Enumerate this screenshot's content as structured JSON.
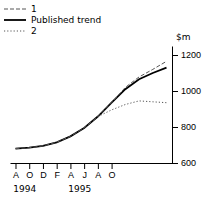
{
  "chart_data": {
    "type": "line",
    "categories": [
      "A",
      "O",
      "D",
      "F",
      "A",
      "J",
      "A",
      "O",
      null,
      null,
      null,
      null
    ],
    "series": [
      {
        "name": "1",
        "color": "#555555",
        "line_style": "dashed",
        "values": [
          680,
          685,
          695,
          715,
          748,
          795,
          858,
          935,
          1020,
          1078,
          1120,
          1165
        ]
      },
      {
        "name": "Published trend",
        "color": "#000000",
        "line_style": "solid",
        "values": [
          680,
          685,
          695,
          715,
          748,
          795,
          858,
          935,
          1010,
          1065,
          1100,
          1130
        ]
      },
      {
        "name": "2",
        "color": "#555555",
        "line_style": "dotted",
        "values": [
          null,
          null,
          null,
          null,
          null,
          null,
          858,
          895,
          925,
          945,
          940,
          935
        ]
      }
    ],
    "ylabel": "$m",
    "ylim": [
      600,
      1250
    ],
    "yticks": [
      600,
      800,
      1000,
      1200
    ],
    "annotations": [
      "1994",
      "1995"
    ],
    "legend": "top-left",
    "grid": false
  }
}
